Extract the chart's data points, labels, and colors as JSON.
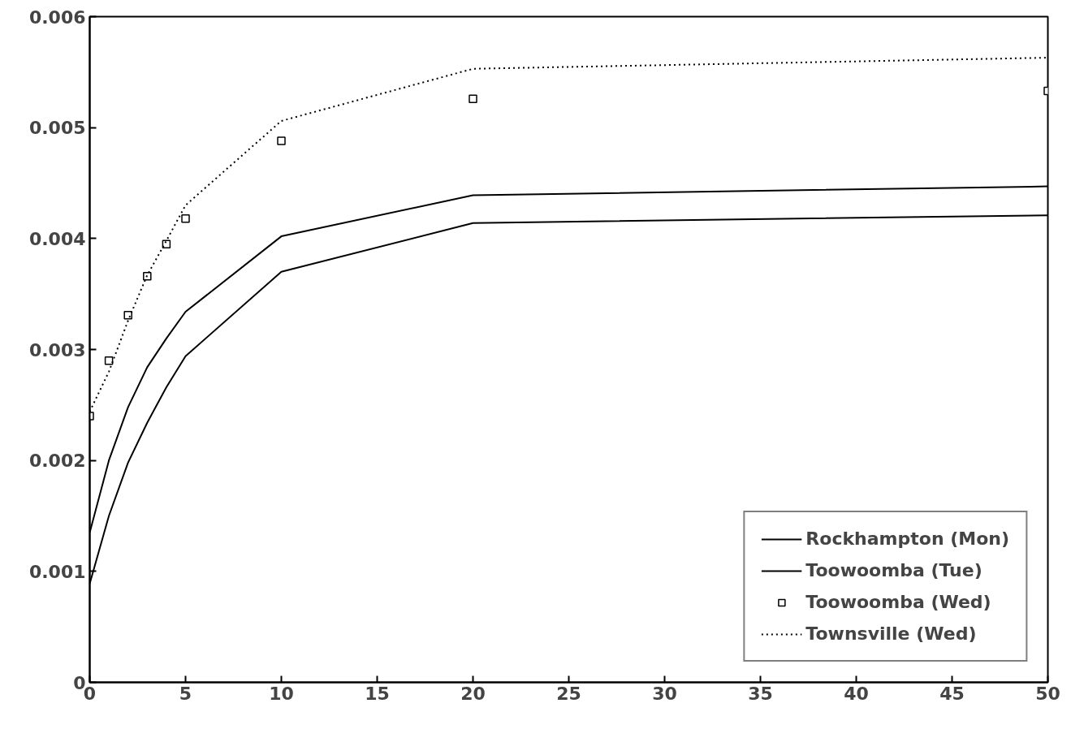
{
  "chart_data": {
    "type": "line",
    "x": [
      0,
      1,
      2,
      3,
      4,
      5,
      10,
      20,
      50
    ],
    "series": [
      {
        "name": "Rockhampton (Mon)",
        "color": "#000000",
        "line_style": "solid",
        "values": [
          0.00135,
          0.002,
          0.00248,
          0.00284,
          0.0031,
          0.00334,
          0.00402,
          0.00439,
          0.00447
        ]
      },
      {
        "name": "Toowoomba (Tue)",
        "color": "#000000",
        "line_style": "solid",
        "values": [
          0.00089,
          0.0015,
          0.00198,
          0.00234,
          0.00266,
          0.00294,
          0.0037,
          0.00414,
          0.00421
        ]
      },
      {
        "name": "Toowoomba (Wed)",
        "type": "scatter",
        "marker": "square",
        "color": "#000000",
        "values": [
          0.0024,
          0.0029,
          0.00331,
          0.00366,
          0.00395,
          0.00418,
          0.00488,
          0.00526,
          0.00533
        ]
      },
      {
        "name": "Townsville (Wed)",
        "color": "#000000",
        "line_style": "dotted",
        "values": [
          0.00244,
          0.0028,
          0.00326,
          0.00367,
          0.00398,
          0.0043,
          0.00506,
          0.00553,
          0.00563
        ]
      }
    ],
    "xlim": [
      0,
      50
    ],
    "xticks": [
      0,
      5,
      10,
      15,
      20,
      25,
      30,
      35,
      40,
      45,
      50
    ],
    "ylim": [
      0,
      0.006
    ],
    "yticks": [
      0,
      0.001,
      0.002,
      0.003,
      0.004,
      0.005,
      0.006
    ],
    "grid": false,
    "legend": "bottom right"
  }
}
